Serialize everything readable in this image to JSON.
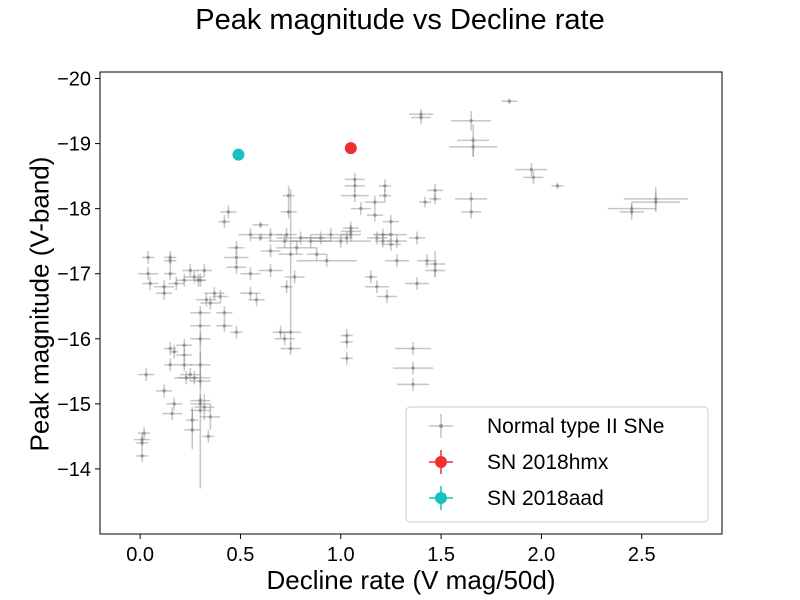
{
  "chart_data": {
    "type": "scatter",
    "title": "Peak magnitude vs Decline rate",
    "xlabel": "Decline rate (V mag/50d)",
    "ylabel": "Peak magnitude (V-band)",
    "xlim": [
      -0.2,
      2.9
    ],
    "ylim": [
      -13.0,
      -20.1
    ],
    "y_inverted": true,
    "x_ticks": [
      0.0,
      0.5,
      1.0,
      1.5,
      2.0,
      2.5
    ],
    "x_tick_labels": [
      "0.0",
      "0.5",
      "1.0",
      "1.5",
      "2.0",
      "2.5"
    ],
    "y_ticks": [
      -14,
      -15,
      -16,
      -17,
      -18,
      -19,
      -20
    ],
    "y_tick_labels": [
      "−14",
      "−15",
      "−16",
      "−17",
      "−18",
      "−19",
      "−20"
    ],
    "grid": false,
    "legend_position": "lower-right",
    "series": [
      {
        "name": "Normal type II SNe",
        "color": "#808080",
        "marker": "point",
        "points": [
          [
            1.84,
            -19.65,
            0.04,
            0.04
          ],
          [
            1.4,
            -19.45,
            0.06,
            0.08
          ],
          [
            1.4,
            -19.4,
            0.05,
            0.1
          ],
          [
            1.65,
            -19.35,
            0.1,
            0.15
          ],
          [
            1.66,
            -19.05,
            0.08,
            0.25
          ],
          [
            1.66,
            -18.95,
            0.12,
            0.15
          ],
          [
            1.95,
            -18.6,
            0.08,
            0.1
          ],
          [
            1.96,
            -18.48,
            0.05,
            0.1
          ],
          [
            2.08,
            -18.35,
            0.03,
            0.05
          ],
          [
            2.57,
            -18.15,
            0.16,
            0.18
          ],
          [
            2.57,
            -18.1,
            0.12,
            0.15
          ],
          [
            2.45,
            -18.0,
            0.12,
            0.1
          ],
          [
            2.45,
            -17.95,
            0.06,
            0.12
          ],
          [
            1.65,
            -18.15,
            0.08,
            0.1
          ],
          [
            1.65,
            -17.95,
            0.05,
            0.1
          ],
          [
            1.47,
            -18.28,
            0.04,
            0.1
          ],
          [
            1.47,
            -18.15,
            0.03,
            0.08
          ],
          [
            1.42,
            -18.1,
            0.03,
            0.08
          ],
          [
            1.43,
            -17.2,
            0.05,
            0.1
          ],
          [
            1.47,
            -17.15,
            0.05,
            0.2
          ],
          [
            1.47,
            -17.05,
            0.05,
            0.1
          ],
          [
            1.38,
            -17.55,
            0.04,
            0.1
          ],
          [
            1.38,
            -16.85,
            0.06,
            0.1
          ],
          [
            1.36,
            -15.85,
            0.09,
            0.1
          ],
          [
            1.36,
            -15.55,
            0.1,
            0.1
          ],
          [
            1.36,
            -15.3,
            0.08,
            0.1
          ],
          [
            1.28,
            -17.5,
            0.05,
            0.1
          ],
          [
            1.28,
            -17.2,
            0.06,
            0.1
          ],
          [
            1.25,
            -17.8,
            0.04,
            0.1
          ],
          [
            1.25,
            -17.6,
            0.08,
            0.1
          ],
          [
            1.25,
            -17.45,
            0.05,
            0.1
          ],
          [
            1.21,
            -17.6,
            0.05,
            0.1
          ],
          [
            1.21,
            -17.5,
            0.04,
            0.1
          ],
          [
            1.18,
            -17.55,
            0.05,
            0.1
          ],
          [
            1.17,
            -18.1,
            0.05,
            0.1
          ],
          [
            1.17,
            -17.9,
            0.04,
            0.1
          ],
          [
            1.22,
            -18.35,
            0.03,
            0.1
          ],
          [
            1.22,
            -18.2,
            0.03,
            0.1
          ],
          [
            1.15,
            -16.95,
            0.03,
            0.1
          ],
          [
            1.18,
            -16.8,
            0.06,
            0.1
          ],
          [
            1.23,
            -16.65,
            0.05,
            0.1
          ],
          [
            1.07,
            -18.45,
            0.05,
            0.1
          ],
          [
            1.07,
            -18.35,
            0.05,
            0.1
          ],
          [
            1.07,
            -18.2,
            0.07,
            0.1
          ],
          [
            1.1,
            -18.0,
            0.05,
            0.1
          ],
          [
            1.05,
            -17.7,
            0.04,
            0.1
          ],
          [
            1.05,
            -17.65,
            0.05,
            0.1
          ],
          [
            1.05,
            -17.6,
            0.05,
            0.1
          ],
          [
            1.03,
            -17.55,
            0.03,
            0.1
          ],
          [
            1.03,
            -16.05,
            0.03,
            0.1
          ],
          [
            1.03,
            -15.95,
            0.03,
            0.1
          ],
          [
            1.03,
            -15.7,
            0.03,
            0.1
          ],
          [
            1.0,
            -17.5,
            0.15,
            0.1
          ],
          [
            0.95,
            -17.6,
            0.1,
            0.1
          ],
          [
            0.9,
            -17.55,
            0.1,
            0.1
          ],
          [
            0.88,
            -17.3,
            0.05,
            0.1
          ],
          [
            0.85,
            -17.5,
            0.1,
            0.1
          ],
          [
            0.8,
            -17.55,
            0.12,
            0.1
          ],
          [
            0.78,
            -17.4,
            0.1,
            0.1
          ],
          [
            0.74,
            -18.2,
            0.03,
            0.15
          ],
          [
            0.74,
            -17.95,
            0.04,
            0.1
          ],
          [
            0.73,
            -17.6,
            0.05,
            0.1
          ],
          [
            0.72,
            -17.5,
            0.08,
            0.1
          ],
          [
            0.75,
            -17.3,
            0.06,
            1.0
          ],
          [
            0.77,
            -16.95,
            0.05,
            0.1
          ],
          [
            0.73,
            -16.8,
            0.03,
            0.1
          ],
          [
            0.72,
            -16.0,
            0.05,
            0.1
          ],
          [
            0.7,
            -16.1,
            0.04,
            0.1
          ],
          [
            0.75,
            -16.1,
            0.05,
            0.2
          ],
          [
            0.75,
            -15.85,
            0.05,
            0.1
          ],
          [
            0.65,
            -17.6,
            0.06,
            0.1
          ],
          [
            0.65,
            -17.35,
            0.05,
            0.1
          ],
          [
            0.65,
            -17.05,
            0.06,
            0.1
          ],
          [
            0.6,
            -17.75,
            0.04,
            0.05
          ],
          [
            0.6,
            -17.55,
            0.05,
            0.05
          ],
          [
            0.55,
            -17.6,
            0.06,
            0.1
          ],
          [
            0.55,
            -17.0,
            0.05,
            0.1
          ],
          [
            0.55,
            -16.7,
            0.05,
            0.1
          ],
          [
            0.58,
            -16.6,
            0.04,
            0.1
          ],
          [
            0.48,
            -17.4,
            0.04,
            0.1
          ],
          [
            0.48,
            -17.25,
            0.06,
            0.1
          ],
          [
            0.48,
            -17.1,
            0.05,
            0.1
          ],
          [
            0.44,
            -17.95,
            0.04,
            0.1
          ],
          [
            0.42,
            -17.8,
            0.03,
            0.1
          ],
          [
            0.42,
            -16.4,
            0.04,
            0.1
          ],
          [
            0.42,
            -16.2,
            0.04,
            0.1
          ],
          [
            0.48,
            -16.1,
            0.03,
            0.1
          ],
          [
            0.4,
            -16.65,
            0.04,
            0.1
          ],
          [
            0.37,
            -16.7,
            0.05,
            0.1
          ],
          [
            0.35,
            -16.55,
            0.05,
            0.1
          ],
          [
            0.33,
            -16.6,
            0.05,
            0.1
          ],
          [
            0.3,
            -16.4,
            0.05,
            0.1
          ],
          [
            0.3,
            -16.2,
            0.05,
            0.1
          ],
          [
            0.3,
            -16.0,
            0.05,
            0.1
          ],
          [
            0.29,
            -16.9,
            0.03,
            0.1
          ],
          [
            0.3,
            -16.9,
            0.03,
            0.1
          ],
          [
            0.32,
            -17.05,
            0.04,
            0.1
          ],
          [
            0.25,
            -17.05,
            0.04,
            0.1
          ],
          [
            0.27,
            -16.95,
            0.05,
            0.1
          ],
          [
            0.22,
            -16.9,
            0.04,
            0.1
          ],
          [
            0.18,
            -16.85,
            0.04,
            0.1
          ],
          [
            0.15,
            -17.2,
            0.03,
            0.1
          ],
          [
            0.15,
            -17.25,
            0.03,
            0.1
          ],
          [
            0.15,
            -17.0,
            0.03,
            0.1
          ],
          [
            0.22,
            -15.9,
            0.04,
            0.1
          ],
          [
            0.22,
            -15.75,
            0.04,
            0.1
          ],
          [
            0.22,
            -15.6,
            0.04,
            0.1
          ],
          [
            0.3,
            -15.6,
            0.05,
            0.2
          ],
          [
            0.25,
            -15.45,
            0.05,
            0.1
          ],
          [
            0.27,
            -15.4,
            0.08,
            0.1
          ],
          [
            0.3,
            -15.35,
            0.05,
            0.1
          ],
          [
            0.23,
            -15.4,
            0.06,
            0.1
          ],
          [
            0.3,
            -15.05,
            0.05,
            0.1
          ],
          [
            0.3,
            -15.0,
            0.05,
            0.1
          ],
          [
            0.32,
            -14.95,
            0.05,
            0.2
          ],
          [
            0.35,
            -14.8,
            0.05,
            0.2
          ],
          [
            0.34,
            -14.5,
            0.03,
            0.1
          ],
          [
            0.26,
            -14.75,
            0.03,
            0.2
          ],
          [
            0.26,
            -14.6,
            0.04,
            0.3
          ],
          [
            0.3,
            -14.9,
            0.05,
            1.2
          ],
          [
            0.17,
            -15.8,
            0.02,
            0.1
          ],
          [
            0.15,
            -15.6,
            0.03,
            0.1
          ],
          [
            0.15,
            -15.85,
            0.03,
            0.1
          ],
          [
            0.12,
            -15.2,
            0.04,
            0.1
          ],
          [
            0.17,
            -15.0,
            0.04,
            0.1
          ],
          [
            0.16,
            -14.85,
            0.05,
            0.1
          ],
          [
            0.03,
            -15.45,
            0.04,
            0.1
          ],
          [
            0.01,
            -14.45,
            0.04,
            0.1
          ],
          [
            0.01,
            -14.4,
            0.03,
            0.1
          ],
          [
            0.01,
            -14.2,
            0.03,
            0.1
          ],
          [
            0.02,
            -14.55,
            0.03,
            0.1
          ],
          [
            0.04,
            -17.0,
            0.05,
            0.1
          ],
          [
            0.05,
            -16.85,
            0.04,
            0.1
          ],
          [
            0.04,
            -17.25,
            0.03,
            0.1
          ],
          [
            0.12,
            -16.8,
            0.05,
            0.1
          ],
          [
            0.12,
            -16.7,
            0.04,
            0.1
          ],
          [
            0.93,
            -17.2,
            0.15,
            0.1
          ]
        ]
      },
      {
        "name": "SN 2018hmx",
        "color": "#f03030",
        "marker": "circle",
        "points": [
          [
            1.05,
            -18.93,
            0,
            0
          ]
        ]
      },
      {
        "name": "SN 2018aad",
        "color": "#19c0c0",
        "marker": "circle",
        "points": [
          [
            0.49,
            -18.83,
            0,
            0
          ]
        ]
      }
    ]
  }
}
